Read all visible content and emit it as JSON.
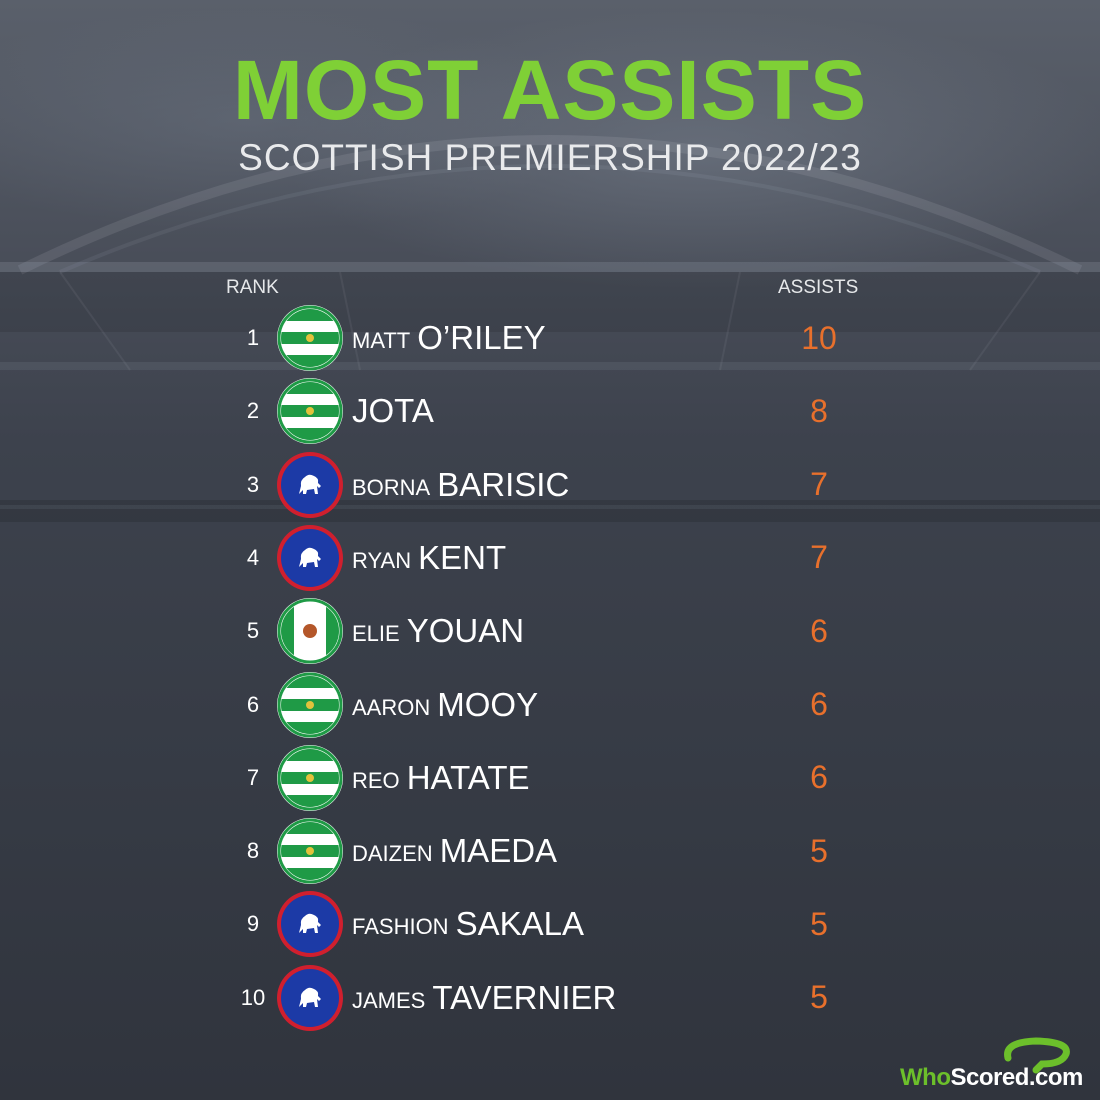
{
  "title": "MOST ASSISTS",
  "subtitle": "SCOTTISH PREMIERSHIP 2022/23",
  "headers": {
    "rank": "RANK",
    "assists": "ASSISTS"
  },
  "colors": {
    "title_green": "#7fd036",
    "assists_orange": "#e8702c",
    "celtic_green": "#1f9a46",
    "rangers_blue": "#1c3aa6",
    "rangers_red": "#d01f2e"
  },
  "rows": [
    {
      "rank": "1",
      "first": "MATT",
      "last": "O’RILEY",
      "assists": "10",
      "badge": "celtic-badge-icon"
    },
    {
      "rank": "2",
      "first": "",
      "last": "JOTA",
      "assists": "8",
      "badge": "celtic-badge-icon"
    },
    {
      "rank": "3",
      "first": "BORNA",
      "last": "BARISIC",
      "assists": "7",
      "badge": "rangers-badge-icon"
    },
    {
      "rank": "4",
      "first": "RYAN",
      "last": "KENT",
      "assists": "7",
      "badge": "rangers-badge-icon"
    },
    {
      "rank": "5",
      "first": "ELIE",
      "last": "YOUAN",
      "assists": "6",
      "badge": "hibernian-badge-icon"
    },
    {
      "rank": "6",
      "first": "AARON",
      "last": "MOOY",
      "assists": "6",
      "badge": "celtic-badge-icon"
    },
    {
      "rank": "7",
      "first": "REO",
      "last": "HATATE",
      "assists": "6",
      "badge": "celtic-badge-icon"
    },
    {
      "rank": "8",
      "first": "DAIZEN",
      "last": "MAEDA",
      "assists": "5",
      "badge": "celtic-badge-icon"
    },
    {
      "rank": "9",
      "first": "FASHION",
      "last": "SAKALA",
      "assists": "5",
      "badge": "rangers-badge-icon"
    },
    {
      "rank": "10",
      "first": "JAMES",
      "last": "TAVERNIER",
      "assists": "5",
      "badge": "rangers-badge-icon"
    }
  ],
  "logo": {
    "part1": "Who",
    "part2": "Scored",
    "part3": ".com"
  }
}
